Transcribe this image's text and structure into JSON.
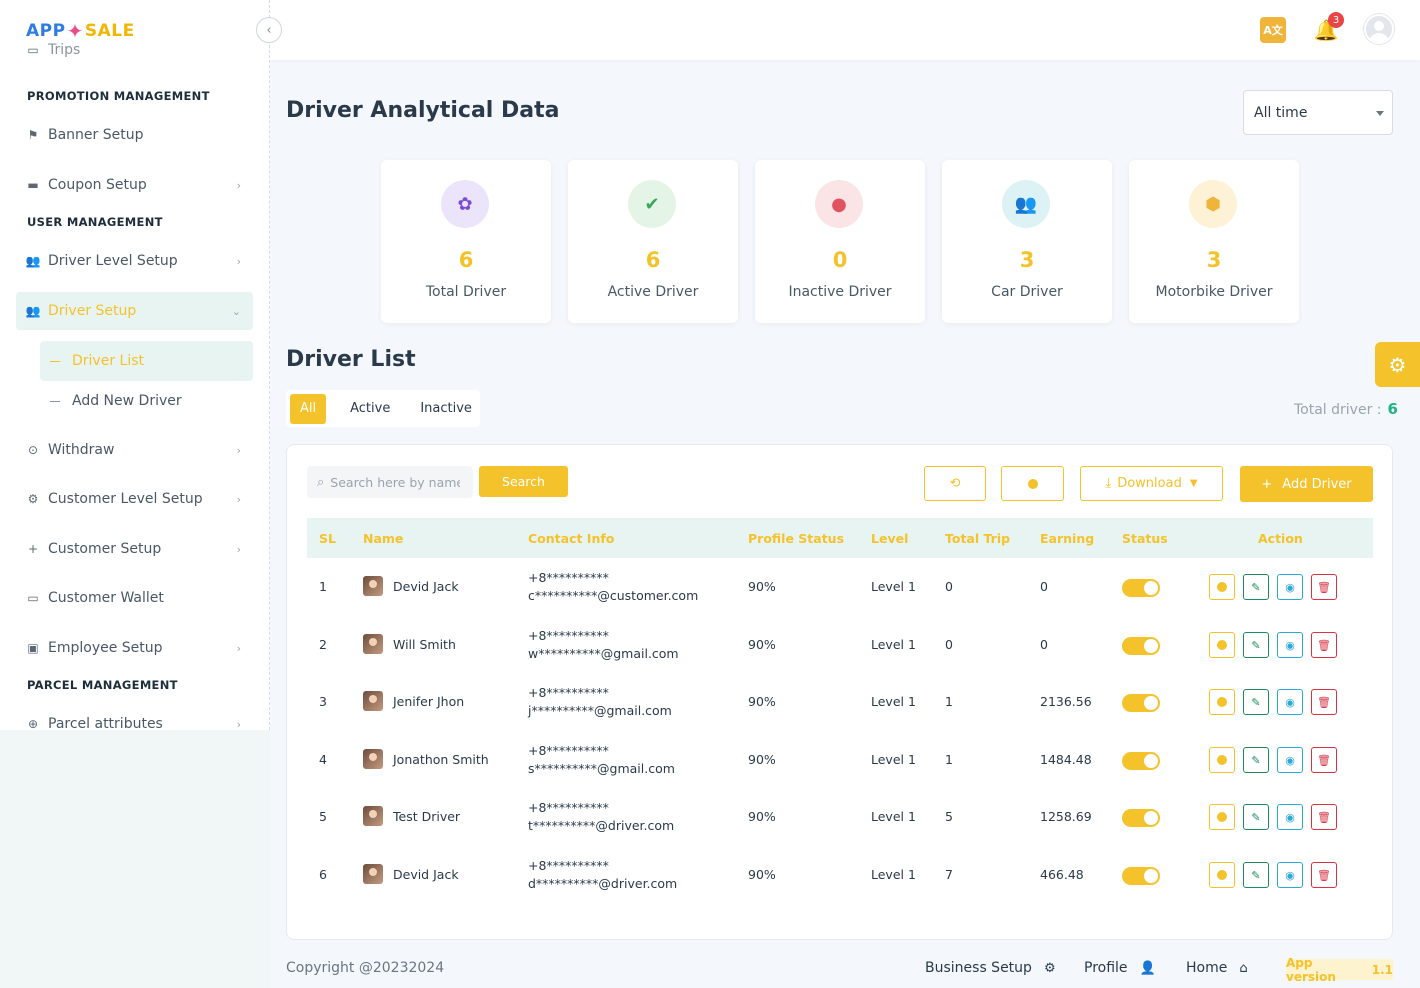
{
  "app": {
    "logo_part1": "APP",
    "logo_part2": "SALE"
  },
  "sidebar": {
    "cut_item": "Trips",
    "sections": [
      "PROMOTION MANAGEMENT",
      "USER MANAGEMENT",
      "PARCEL MANAGEMENT"
    ],
    "items": [
      {
        "label": "Banner Setup",
        "icon": "flag-icon"
      },
      {
        "label": "Coupon Setup",
        "icon": "coupon-icon"
      },
      {
        "label": "Driver Level Setup",
        "icon": "users-icon"
      },
      {
        "label": "Driver Setup",
        "icon": "users-icon"
      },
      {
        "label": "Withdraw",
        "icon": "withdraw-icon"
      },
      {
        "label": "Customer Level Setup",
        "icon": "user-cog-icon"
      },
      {
        "label": "Customer Setup",
        "icon": "user-plus-icon"
      },
      {
        "label": "Customer Wallet",
        "icon": "wallet-icon"
      },
      {
        "label": "Employee Setup",
        "icon": "id-card-icon"
      },
      {
        "label": "Parcel attributes",
        "icon": "parcel-icon"
      }
    ],
    "sub_items": [
      "Driver List",
      "Add New Driver"
    ]
  },
  "header": {
    "notification_count": "3",
    "translate_icon": "translate-icon"
  },
  "page": {
    "title": "Driver Analytical Data",
    "time_filter": "All time"
  },
  "stats": [
    {
      "value": "6",
      "label": "Total Driver",
      "bg": "#ece4fa",
      "color": "#7a4cd6"
    },
    {
      "value": "6",
      "label": "Active Driver",
      "bg": "#e4f4e6",
      "color": "#3aa75a"
    },
    {
      "value": "0",
      "label": "Inactive Driver",
      "bg": "#fbe4e6",
      "color": "#e05461"
    },
    {
      "value": "3",
      "label": "Car Driver",
      "bg": "#dcf2f5",
      "color": "#2f8898"
    },
    {
      "value": "3",
      "label": "Motorbike Driver",
      "bg": "#fdf1d6",
      "color": "#f0b43a"
    }
  ],
  "list": {
    "title": "Driver List",
    "tabs": [
      "All",
      "Active",
      "Inactive"
    ],
    "total_label": "Total driver :",
    "total_value": "6",
    "search_placeholder": "Search here by name",
    "search_label": "Search",
    "download_label": "Download",
    "add_label": "Add Driver",
    "columns": [
      "SL",
      "Name",
      "Contact Info",
      "Profile Status",
      "Level",
      "Total Trip",
      "Earning",
      "Status",
      "Action"
    ],
    "rows": [
      {
        "sl": "1",
        "name": "Devid Jack",
        "phone": "+8**********",
        "email": "c**********@customer.com",
        "profile": "90%",
        "level": "Level 1",
        "trips": "0",
        "earning": "0"
      },
      {
        "sl": "2",
        "name": "Will Smith",
        "phone": "+8**********",
        "email": "w**********@gmail.com",
        "profile": "90%",
        "level": "Level 1",
        "trips": "0",
        "earning": "0"
      },
      {
        "sl": "3",
        "name": "Jenifer Jhon",
        "phone": "+8**********",
        "email": "j**********@gmail.com",
        "profile": "90%",
        "level": "Level 1",
        "trips": "1",
        "earning": "2136.56"
      },
      {
        "sl": "4",
        "name": "Jonathon Smith",
        "phone": "+8**********",
        "email": "s**********@gmail.com",
        "profile": "90%",
        "level": "Level 1",
        "trips": "1",
        "earning": "1484.48"
      },
      {
        "sl": "5",
        "name": "Test Driver",
        "phone": "+8**********",
        "email": "t**********@driver.com",
        "profile": "90%",
        "level": "Level 1",
        "trips": "5",
        "earning": "1258.69"
      },
      {
        "sl": "6",
        "name": "Devid Jack",
        "phone": "+8**********",
        "email": "d**********@driver.com",
        "profile": "90%",
        "level": "Level 1",
        "trips": "7",
        "earning": "466.48"
      }
    ]
  },
  "footer": {
    "copyright": "Copyright @20232024",
    "business_setup": "Business Setup",
    "profile": "Profile",
    "home": "Home",
    "version_label": "App version",
    "version_value": "1.1"
  },
  "colors": {
    "accent": "#f4c22b",
    "accent_bg": "#e8f4f1",
    "total_num": "#20b08a"
  }
}
